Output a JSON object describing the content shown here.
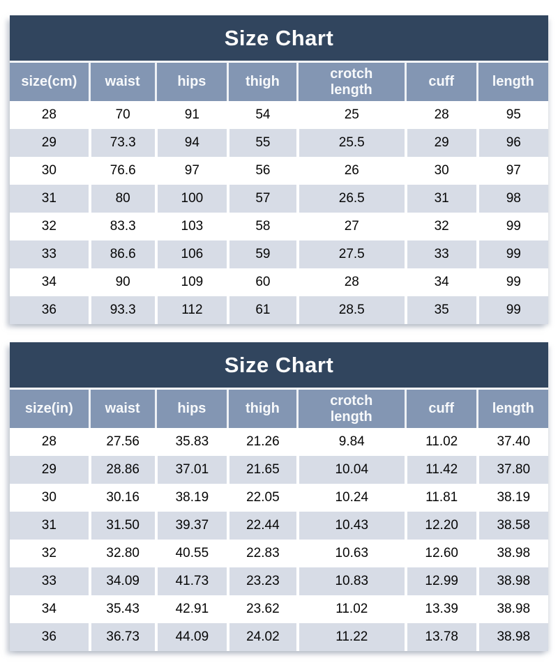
{
  "colors": {
    "title_bar": "#31455e",
    "column_header": "#8396b3",
    "row_alternate": "#d7dce6",
    "row_base": "#ffffff",
    "header_text": "#ffffff",
    "data_text": "#000000"
  },
  "chart_data": [
    {
      "type": "table",
      "title": "Size Chart",
      "columns": [
        "size(cm)",
        "waist",
        "hips",
        "thigh",
        "crotch\nlength",
        "cuff",
        "length"
      ],
      "rows": [
        [
          "28",
          "70",
          "91",
          "54",
          "25",
          "28",
          "95"
        ],
        [
          "29",
          "73.3",
          "94",
          "55",
          "25.5",
          "29",
          "96"
        ],
        [
          "30",
          "76.6",
          "97",
          "56",
          "26",
          "30",
          "97"
        ],
        [
          "31",
          "80",
          "100",
          "57",
          "26.5",
          "31",
          "98"
        ],
        [
          "32",
          "83.3",
          "103",
          "58",
          "27",
          "32",
          "99"
        ],
        [
          "33",
          "86.6",
          "106",
          "59",
          "27.5",
          "33",
          "99"
        ],
        [
          "34",
          "90",
          "109",
          "60",
          "28",
          "34",
          "99"
        ],
        [
          "36",
          "93.3",
          "112",
          "61",
          "28.5",
          "35",
          "99"
        ]
      ]
    },
    {
      "type": "table",
      "title": "Size Chart",
      "columns": [
        "size(in)",
        "waist",
        "hips",
        "thigh",
        "crotch\nlength",
        "cuff",
        "length"
      ],
      "rows": [
        [
          "28",
          "27.56",
          "35.83",
          "21.26",
          "9.84",
          "11.02",
          "37.40"
        ],
        [
          "29",
          "28.86",
          "37.01",
          "21.65",
          "10.04",
          "11.42",
          "37.80"
        ],
        [
          "30",
          "30.16",
          "38.19",
          "22.05",
          "10.24",
          "11.81",
          "38.19"
        ],
        [
          "31",
          "31.50",
          "39.37",
          "22.44",
          "10.43",
          "12.20",
          "38.58"
        ],
        [
          "32",
          "32.80",
          "40.55",
          "22.83",
          "10.63",
          "12.60",
          "38.98"
        ],
        [
          "33",
          "34.09",
          "41.73",
          "23.23",
          "10.83",
          "12.99",
          "38.98"
        ],
        [
          "34",
          "35.43",
          "42.91",
          "23.62",
          "11.02",
          "13.39",
          "38.98"
        ],
        [
          "36",
          "36.73",
          "44.09",
          "24.02",
          "11.22",
          "13.78",
          "38.98"
        ]
      ]
    }
  ]
}
